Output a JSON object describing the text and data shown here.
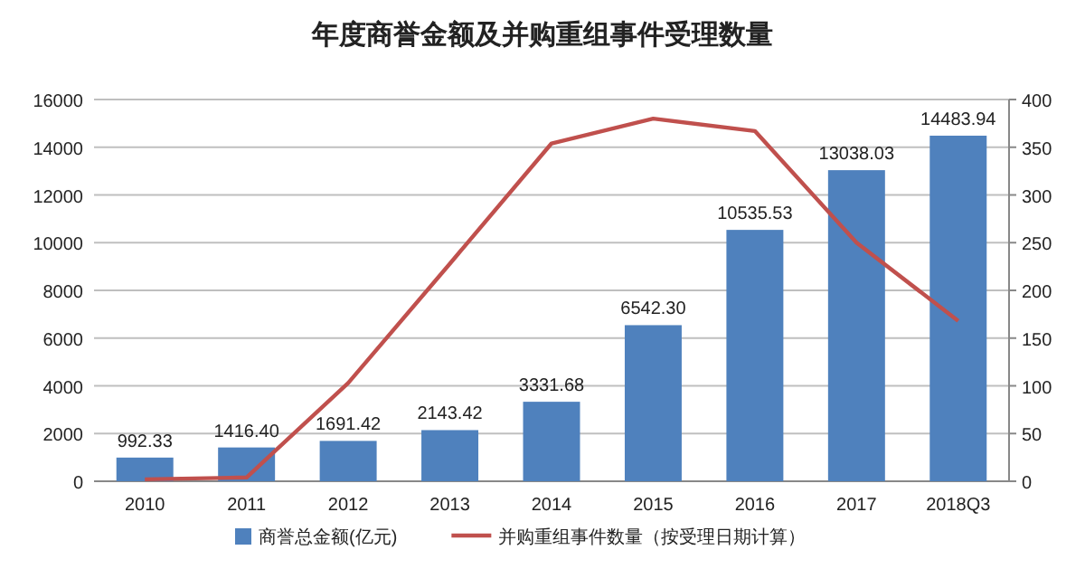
{
  "chart_data": {
    "type": "bar",
    "title": "年度商誉金额及并购重组事件受理数量",
    "categories": [
      "2010",
      "2011",
      "2012",
      "2013",
      "2014",
      "2015",
      "2016",
      "2017",
      "2018Q3"
    ],
    "series": [
      {
        "name": "商誉总金额(亿元)",
        "color": "#4f81bd",
        "values": [
          992.33,
          1416.4,
          1691.42,
          2143.42,
          3331.68,
          6542.3,
          10535.53,
          13038.03,
          14483.94
        ],
        "value_labels": [
          "992.33",
          "1416.40",
          "1691.42",
          "2143.42",
          "3331.68",
          "6542.30",
          "10535.53",
          "13038.03",
          "14483.94"
        ]
      },
      {
        "name": "并购重组事件数量（按受理日期计算）",
        "type": "line",
        "axis": "y2",
        "color": "#c0504d",
        "values": [
          2,
          4,
          103,
          228,
          354,
          380,
          367,
          250,
          168
        ]
      }
    ],
    "ylim": [
      0,
      16000
    ],
    "yticks": [
      0,
      2000,
      4000,
      6000,
      8000,
      10000,
      12000,
      14000,
      16000
    ],
    "y2lim": [
      0,
      400
    ],
    "y2ticks": [
      0,
      50,
      100,
      150,
      200,
      250,
      300,
      350,
      400
    ],
    "grid": "y",
    "legend": "bottom"
  }
}
